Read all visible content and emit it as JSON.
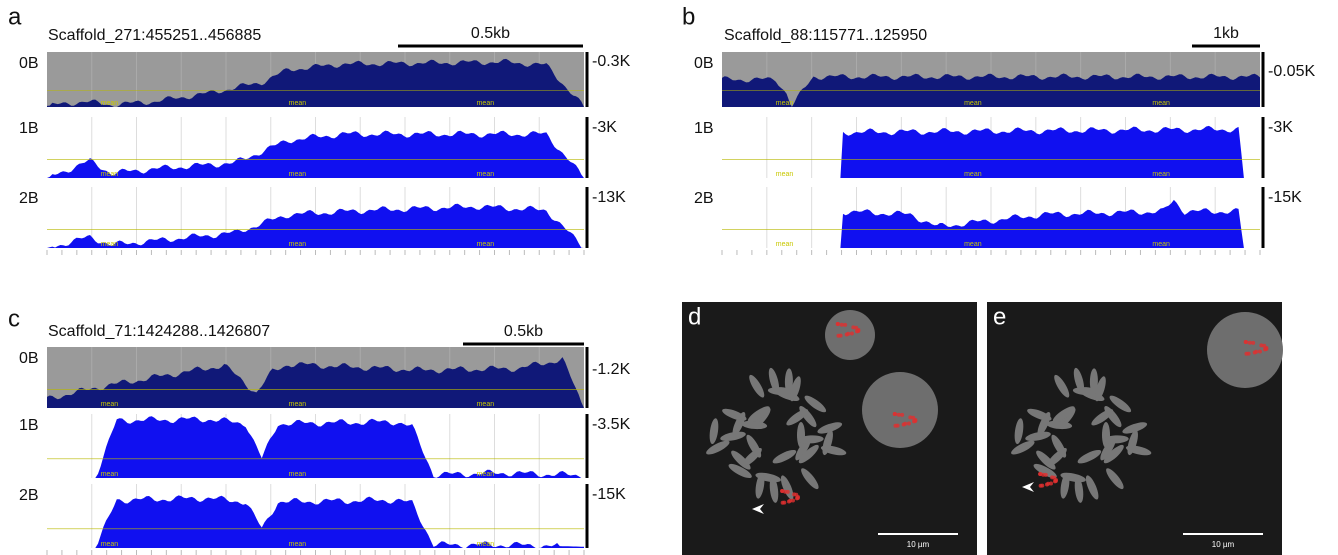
{
  "panels": [
    {
      "letter": "a",
      "region": "Scaffold_271:455251..456885",
      "scale_bar": "0.5kb",
      "tracks": [
        {
          "label": "0B",
          "scale": "-0.3K"
        },
        {
          "label": "1B",
          "scale": "-3K"
        },
        {
          "label": "2B",
          "scale": "-13K"
        }
      ]
    },
    {
      "letter": "b",
      "region": "Scaffold_88:115771..125950",
      "scale_bar": "1kb",
      "tracks": [
        {
          "label": "0B",
          "scale": "-0.05K"
        },
        {
          "label": "1B",
          "scale": "-3K"
        },
        {
          "label": "2B",
          "scale": "-15K"
        }
      ]
    },
    {
      "letter": "c",
      "region": "Scaffold_71:1424288..1426807",
      "scale_bar": "0.5kb",
      "tracks": [
        {
          "label": "0B",
          "scale": "-1.2K"
        },
        {
          "label": "1B",
          "scale": "-3.5K"
        },
        {
          "label": "2B",
          "scale": "-15K"
        }
      ]
    }
  ],
  "images": [
    {
      "letter": "d",
      "scale_bar": "10 µm"
    },
    {
      "letter": "e",
      "scale_bar": "10 µm"
    }
  ],
  "track_marker": "mean"
}
